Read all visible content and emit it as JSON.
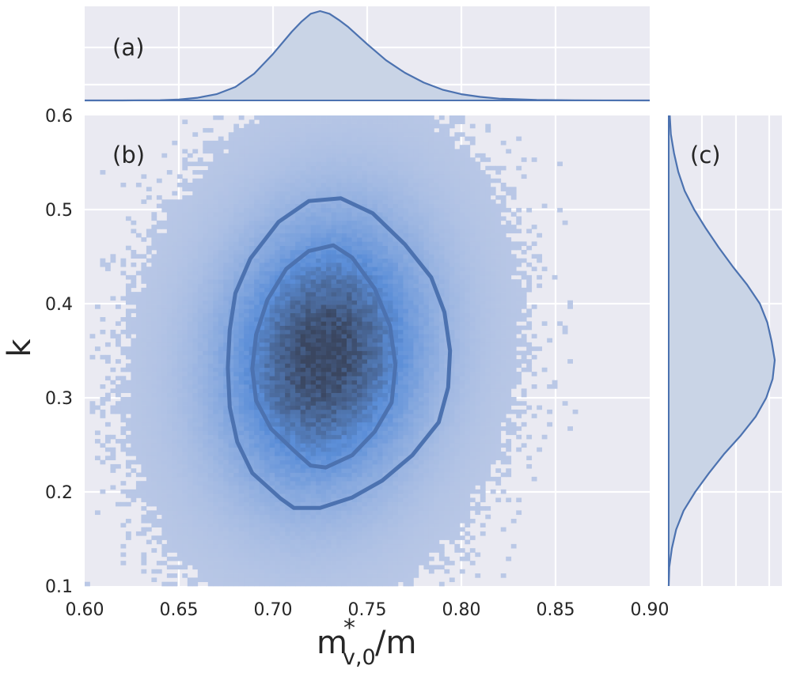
{
  "colors": {
    "panel_background": "#eaeaf2",
    "grid": "#ffffff",
    "marginal_line": "#4c72b0",
    "marginal_fill": "#c9d4e6",
    "hist_low": "#bac8e6",
    "hist_mid": "#5b8ed8",
    "hist_high": "#3a4660",
    "contour": "#4c72b0",
    "text": "#262626"
  },
  "chart_data": {
    "type": "heatmap",
    "subtype": "joint-plot: 2D histogram with KDE contours and marginal KDEs",
    "xlabel": "m*_{v,0}/m",
    "xlabel_parts": {
      "base": "m",
      "superscript": "*",
      "subscript": "v,0",
      "suffix": "/m"
    },
    "ylabel": "k",
    "xlim": [
      0.6,
      0.9
    ],
    "ylim": [
      0.1,
      0.6
    ],
    "x_ticks": [
      0.6,
      0.65,
      0.7,
      0.75,
      0.8,
      0.85,
      0.9
    ],
    "x_tick_labels": [
      "0.60",
      "0.65",
      "0.70",
      "0.75",
      "0.80",
      "0.85",
      "0.90"
    ],
    "y_ticks": [
      0.1,
      0.2,
      0.3,
      0.4,
      0.5,
      0.6
    ],
    "y_tick_labels": [
      "0.1",
      "0.2",
      "0.3",
      "0.4",
      "0.5",
      "0.6"
    ],
    "panels": {
      "top": "(a)",
      "main": "(b)",
      "right": "(c)"
    },
    "distribution": {
      "x_mean": 0.727,
      "x_std": 0.033,
      "y_mean": 0.345,
      "y_std": 0.088,
      "correlation": 0.12
    },
    "hist2d": {
      "x_bins": 110,
      "y_bins": 112
    },
    "contour_levels": [
      {
        "name": "outer",
        "points": [
          [
            0.736,
            0.512
          ],
          [
            0.719,
            0.509
          ],
          [
            0.703,
            0.487
          ],
          [
            0.688,
            0.448
          ],
          [
            0.68,
            0.411
          ],
          [
            0.677,
            0.372
          ],
          [
            0.676,
            0.332
          ],
          [
            0.677,
            0.29
          ],
          [
            0.681,
            0.253
          ],
          [
            0.689,
            0.22
          ],
          [
            0.704,
            0.193
          ],
          [
            0.711,
            0.183
          ],
          [
            0.725,
            0.183
          ],
          [
            0.742,
            0.194
          ],
          [
            0.758,
            0.212
          ],
          [
            0.774,
            0.239
          ],
          [
            0.788,
            0.274
          ],
          [
            0.793,
            0.311
          ],
          [
            0.794,
            0.35
          ],
          [
            0.791,
            0.391
          ],
          [
            0.784,
            0.428
          ],
          [
            0.77,
            0.463
          ],
          [
            0.753,
            0.496
          ],
          [
            0.736,
            0.512
          ]
        ]
      },
      {
        "name": "inner",
        "points": [
          [
            0.732,
            0.462
          ],
          [
            0.719,
            0.456
          ],
          [
            0.707,
            0.437
          ],
          [
            0.697,
            0.404
          ],
          [
            0.691,
            0.367
          ],
          [
            0.689,
            0.331
          ],
          [
            0.691,
            0.297
          ],
          [
            0.699,
            0.267
          ],
          [
            0.711,
            0.244
          ],
          [
            0.72,
            0.228
          ],
          [
            0.728,
            0.226
          ],
          [
            0.742,
            0.239
          ],
          [
            0.754,
            0.264
          ],
          [
            0.763,
            0.295
          ],
          [
            0.765,
            0.335
          ],
          [
            0.762,
            0.377
          ],
          [
            0.754,
            0.416
          ],
          [
            0.742,
            0.449
          ],
          [
            0.732,
            0.462
          ]
        ]
      }
    ],
    "marginal_x_kde": {
      "x": [
        0.6,
        0.62,
        0.64,
        0.65,
        0.66,
        0.67,
        0.68,
        0.69,
        0.7,
        0.71,
        0.715,
        0.72,
        0.725,
        0.73,
        0.735,
        0.74,
        0.75,
        0.76,
        0.77,
        0.78,
        0.79,
        0.8,
        0.81,
        0.82,
        0.84,
        0.86,
        0.9
      ],
      "density": [
        0.0,
        0.0,
        0.003,
        0.01,
        0.03,
        0.07,
        0.15,
        0.3,
        0.52,
        0.77,
        0.88,
        0.97,
        1.0,
        0.97,
        0.9,
        0.82,
        0.63,
        0.45,
        0.31,
        0.2,
        0.12,
        0.07,
        0.04,
        0.02,
        0.005,
        0.001,
        0.0
      ]
    },
    "marginal_y_kde": {
      "y": [
        0.1,
        0.12,
        0.14,
        0.16,
        0.18,
        0.2,
        0.22,
        0.24,
        0.26,
        0.28,
        0.3,
        0.32,
        0.34,
        0.36,
        0.38,
        0.4,
        0.42,
        0.44,
        0.46,
        0.48,
        0.5,
        0.52,
        0.54,
        0.56,
        0.58,
        0.6
      ],
      "density": [
        0.0,
        0.005,
        0.03,
        0.07,
        0.14,
        0.25,
        0.38,
        0.52,
        0.68,
        0.82,
        0.92,
        0.98,
        1.0,
        0.97,
        0.93,
        0.86,
        0.74,
        0.6,
        0.47,
        0.35,
        0.24,
        0.15,
        0.09,
        0.05,
        0.02,
        0.01
      ]
    }
  }
}
